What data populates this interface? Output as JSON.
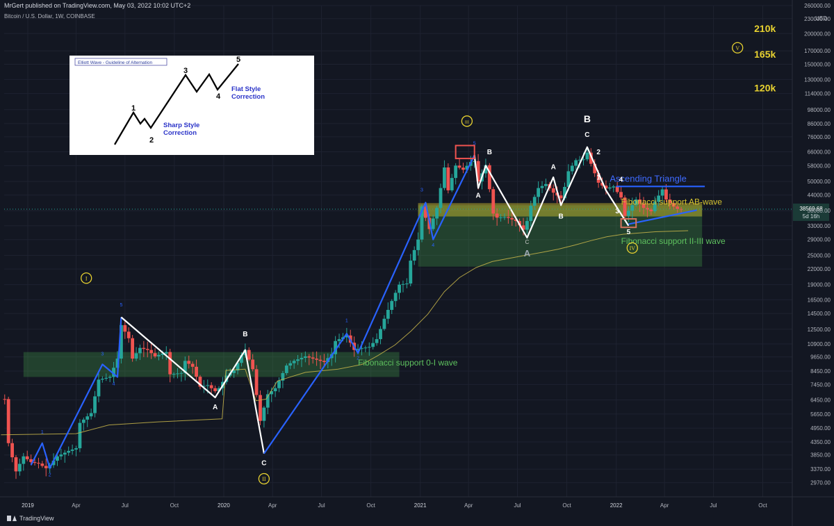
{
  "header": {
    "published": "MrGert published on TradingView.com, May 03, 2022 10:02 UTC+2",
    "symbol": "Bitcoin / U.S. Dollar, 1W, COINBASE"
  },
  "footer": {
    "brand": "TradingView"
  },
  "colors": {
    "background": "#131722",
    "up": "#26a69a",
    "down": "#ef5350",
    "wave_blue": "#2962ff",
    "wave_white": "#ffffff",
    "yellow": "#e8d230",
    "fib_green": "#4caf50"
  },
  "chart_data": {
    "type": "candlestick",
    "title": "Bitcoin / U.S. Dollar, 1W, COINBASE",
    "y_scale": "log",
    "y_unit": "USD",
    "ylim": [
      2600,
      260000
    ],
    "y_ticks": [
      "260000.00",
      "230000.00",
      "200000.00",
      "170000.00",
      "150000.00",
      "130000.00",
      "114000.00",
      "98000.00",
      "86000.00",
      "76000.00",
      "66000.00",
      "58000.00",
      "50000.00",
      "44000.00",
      "38000.00",
      "33000.00",
      "29000.00",
      "25000.00",
      "22000.00",
      "19000.00",
      "16500.00",
      "14500.00",
      "12500.00",
      "10900.00",
      "9650.00",
      "8450.00",
      "7450.00",
      "6450.00",
      "5650.00",
      "4950.00",
      "4350.00",
      "3850.00",
      "3370.00",
      "2970.00"
    ],
    "x_ticks": [
      "2019",
      "Apr",
      "Jul",
      "Oct",
      "2020",
      "Apr",
      "Jul",
      "Oct",
      "2021",
      "Apr",
      "Jul",
      "Oct",
      "2022",
      "Apr",
      "Jul",
      "Oct"
    ],
    "x_tick_dates": [
      "2019-01-01",
      "2019-04-01",
      "2019-07-01",
      "2019-10-01",
      "2020-01-01",
      "2020-04-01",
      "2020-07-01",
      "2020-10-01",
      "2021-01-01",
      "2021-04-01",
      "2021-07-01",
      "2021-10-01",
      "2022-01-01",
      "2022-04-01",
      "2022-07-01",
      "2022-10-01"
    ],
    "xlim": [
      "2018-11-18",
      "2022-11-25"
    ],
    "last_price": {
      "label": "38569.68",
      "sub": "5d 16h",
      "value": 38569.68
    },
    "price_anchors": [
      [
        "2018-11-19",
        6500
      ],
      [
        "2018-11-26",
        4300
      ],
      [
        "2018-12-10",
        3300
      ],
      [
        "2018-12-24",
        3800
      ],
      [
        "2019-01-07",
        3600
      ],
      [
        "2019-01-21",
        3550
      ],
      [
        "2019-02-04",
        3400
      ],
      [
        "2019-02-11",
        3500
      ],
      [
        "2019-02-25",
        3800
      ],
      [
        "2019-03-18",
        4000
      ],
      [
        "2019-04-01",
        4100
      ],
      [
        "2019-04-08",
        5200
      ],
      [
        "2019-04-29",
        5700
      ],
      [
        "2019-05-13",
        7800
      ],
      [
        "2019-06-03",
        8000
      ],
      [
        "2019-06-17",
        9500
      ],
      [
        "2019-06-24",
        13000
      ],
      [
        "2019-07-08",
        11500
      ],
      [
        "2019-07-15",
        9500
      ],
      [
        "2019-07-29",
        10500
      ],
      [
        "2019-08-12",
        10300
      ],
      [
        "2019-08-26",
        9700
      ],
      [
        "2019-09-16",
        10100
      ],
      [
        "2019-09-23",
        8200
      ],
      [
        "2019-10-14",
        8300
      ],
      [
        "2019-10-21",
        9300
      ],
      [
        "2019-11-04",
        8800
      ],
      [
        "2019-11-18",
        7300
      ],
      [
        "2019-12-02",
        7400
      ],
      [
        "2019-12-16",
        7000
      ],
      [
        "2019-12-23",
        7200
      ],
      [
        "2020-01-06",
        8100
      ],
      [
        "2020-01-20",
        8500
      ],
      [
        "2020-02-03",
        9800
      ],
      [
        "2020-02-10",
        10300
      ],
      [
        "2020-02-24",
        8600
      ],
      [
        "2020-03-09",
        5300
      ],
      [
        "2020-03-16",
        6000
      ],
      [
        "2020-03-23",
        6800
      ],
      [
        "2020-04-06",
        7200
      ],
      [
        "2020-04-27",
        8900
      ],
      [
        "2020-05-11",
        9300
      ],
      [
        "2020-06-01",
        9700
      ],
      [
        "2020-07-06",
        9200
      ],
      [
        "2020-07-20",
        9900
      ],
      [
        "2020-07-27",
        11200
      ],
      [
        "2020-08-17",
        11800
      ],
      [
        "2020-08-31",
        10300
      ],
      [
        "2020-09-07",
        10400
      ],
      [
        "2020-09-28",
        10600
      ],
      [
        "2020-10-12",
        11400
      ],
      [
        "2020-10-26",
        13800
      ],
      [
        "2020-11-09",
        16300
      ],
      [
        "2020-11-23",
        19000
      ],
      [
        "2020-12-07",
        19200
      ],
      [
        "2020-12-14",
        23800
      ],
      [
        "2020-12-28",
        29000
      ],
      [
        "2021-01-04",
        39500
      ],
      [
        "2021-01-18",
        32000
      ],
      [
        "2021-02-01",
        39000
      ],
      [
        "2021-02-08",
        47000
      ],
      [
        "2021-02-15",
        57000
      ],
      [
        "2021-02-22",
        46000
      ],
      [
        "2021-03-08",
        58000
      ],
      [
        "2021-03-22",
        55800
      ],
      [
        "2021-04-05",
        60000
      ],
      [
        "2021-04-12",
        60500
      ],
      [
        "2021-04-19",
        50000
      ],
      [
        "2021-05-03",
        58200
      ],
      [
        "2021-05-10",
        46500
      ],
      [
        "2021-05-17",
        37000
      ],
      [
        "2021-05-24",
        35600
      ],
      [
        "2021-06-07",
        35800
      ],
      [
        "2021-06-14",
        35500
      ],
      [
        "2021-06-28",
        34500
      ],
      [
        "2021-07-12",
        31800
      ],
      [
        "2021-07-19",
        34500
      ],
      [
        "2021-07-26",
        39800
      ],
      [
        "2021-08-09",
        47000
      ],
      [
        "2021-08-23",
        48800
      ],
      [
        "2021-09-06",
        45000
      ],
      [
        "2021-09-20",
        42700
      ],
      [
        "2021-09-27",
        47500
      ],
      [
        "2021-10-04",
        55000
      ],
      [
        "2021-10-18",
        61000
      ],
      [
        "2021-11-01",
        61500
      ],
      [
        "2021-11-08",
        65500
      ],
      [
        "2021-11-15",
        59000
      ],
      [
        "2021-11-29",
        49400
      ],
      [
        "2021-12-13",
        46800
      ],
      [
        "2021-12-27",
        47700
      ],
      [
        "2022-01-10",
        43000
      ],
      [
        "2022-01-17",
        36200
      ],
      [
        "2022-01-24",
        38000
      ],
      [
        "2022-02-07",
        42200
      ],
      [
        "2022-02-21",
        39000
      ],
      [
        "2022-03-07",
        37800
      ],
      [
        "2022-03-14",
        41300
      ],
      [
        "2022-03-28",
        46400
      ],
      [
        "2022-04-04",
        42200
      ],
      [
        "2022-04-18",
        39500
      ],
      [
        "2022-04-25",
        38600
      ],
      [
        "2022-05-02",
        38569
      ]
    ],
    "ma_anchors": [
      [
        "2018-11-12",
        4650
      ],
      [
        "2019-04-01",
        4700
      ],
      [
        "2019-06-01",
        5100
      ],
      [
        "2019-09-01",
        5250
      ],
      [
        "2019-12-29",
        5400
      ],
      [
        "2020-01-05",
        8500
      ],
      [
        "2020-01-20",
        8550
      ],
      [
        "2020-02-10",
        8600
      ],
      [
        "2020-03-01",
        6400
      ],
      [
        "2020-03-20",
        6500
      ],
      [
        "2020-04-10",
        7700
      ],
      [
        "2020-06-01",
        8350
      ],
      [
        "2020-08-01",
        8600
      ],
      [
        "2020-09-15",
        9000
      ],
      [
        "2020-10-15",
        9800
      ],
      [
        "2020-11-15",
        10800
      ],
      [
        "2020-12-15",
        12300
      ],
      [
        "2021-01-15",
        14400
      ],
      [
        "2021-02-15",
        17800
      ],
      [
        "2021-03-15",
        20300
      ],
      [
        "2021-04-15",
        22300
      ],
      [
        "2021-05-15",
        23600
      ],
      [
        "2021-06-15",
        24300
      ],
      [
        "2021-07-15",
        25000
      ],
      [
        "2021-08-15",
        25700
      ],
      [
        "2021-09-15",
        26500
      ],
      [
        "2021-10-15",
        27500
      ],
      [
        "2021-11-15",
        28700
      ],
      [
        "2021-12-15",
        29800
      ],
      [
        "2022-01-15",
        30500
      ],
      [
        "2022-03-15",
        31200
      ],
      [
        "2022-05-15",
        31500
      ]
    ],
    "waves": [
      {
        "name": "blue-impulse-1",
        "color": "#2962ff",
        "points": [
          [
            "2019-01-07",
            3500
          ],
          [
            "2019-01-28",
            4300
          ],
          [
            "2019-02-11",
            3400
          ],
          [
            "2019-05-20",
            9000
          ],
          [
            "2019-06-17",
            8000
          ],
          [
            "2019-06-24",
            14000
          ]
        ]
      },
      {
        "name": "white-abc-1",
        "color": "#ffffff",
        "points": [
          [
            "2019-06-24",
            14000
          ],
          [
            "2019-12-16",
            6600
          ],
          [
            "2020-02-10",
            10300
          ],
          [
            "2020-03-16",
            3900
          ]
        ]
      },
      {
        "name": "blue-impulse-2",
        "color": "#2962ff",
        "points": [
          [
            "2020-03-16",
            3900
          ],
          [
            "2020-08-17",
            12000
          ],
          [
            "2020-09-07",
            10000
          ],
          [
            "2021-01-11",
            41000
          ],
          [
            "2021-01-25",
            29000
          ],
          [
            "2021-04-12",
            64000
          ]
        ]
      },
      {
        "name": "white-abc-2",
        "color": "#ffffff",
        "points": [
          [
            "2021-04-12",
            64000
          ],
          [
            "2021-04-19",
            47000
          ],
          [
            "2021-05-03",
            58000
          ],
          [
            "2021-07-19",
            29500
          ],
          [
            "2021-09-06",
            52000
          ],
          [
            "2021-09-20",
            40000
          ],
          [
            "2021-11-08",
            69000
          ],
          [
            "2021-12-13",
            46000
          ],
          [
            "2022-01-24",
            33000
          ]
        ]
      },
      {
        "name": "blue-triangle-top",
        "color": "#2962ff",
        "points": [
          [
            "2022-01-01",
            47700
          ],
          [
            "2022-06-15",
            47700
          ]
        ]
      },
      {
        "name": "blue-triangle-bottom",
        "color": "#2962ff",
        "points": [
          [
            "2022-01-24",
            33500
          ],
          [
            "2022-05-31",
            38200
          ]
        ]
      }
    ],
    "zones": [
      {
        "name": "fib-zone-0-1",
        "color": "#4caf50",
        "opacity": 0.28,
        "x1": "2018-12-24",
        "x2": "2020-11-23",
        "y1": 8000,
        "y2": 10100
      },
      {
        "name": "fib-zone-2-3",
        "color": "#4caf50",
        "opacity": 0.28,
        "x1": "2020-12-28",
        "x2": "2022-06-10",
        "y1": 22500,
        "y2": 40000
      },
      {
        "name": "fib-zone-ab",
        "color": "#e8d230",
        "opacity": 0.42,
        "x1": "2020-12-28",
        "x2": "2022-06-10",
        "y1": 36000,
        "y2": 40800
      }
    ],
    "markers": [
      {
        "name": "red-box-wave-3-top",
        "color": "#ef5350",
        "x1": "2021-03-08",
        "x2": "2021-04-12",
        "y1": 62000,
        "y2": 70000
      },
      {
        "name": "box-wave-4-low",
        "color": "#d8735e",
        "x1": "2022-01-10",
        "x2": "2022-02-07",
        "y1": 32500,
        "y2": 35200
      }
    ],
    "annotations": {
      "fib_labels": [
        {
          "text": "Fibonacci support 0-I wave",
          "color": "#5ec25e",
          "x": "2020-09-07",
          "y": 8900
        },
        {
          "text": "Fibonacci support II-III wave",
          "color": "#5ec25e",
          "x": "2022-01-10",
          "y": 27800
        },
        {
          "text": "Fibonacci support AB-wave",
          "color": "#d6c430",
          "x": "2022-01-10",
          "y": 40200
        }
      ],
      "triangle_label": {
        "text": "Ascending Triangle",
        "color": "#3f6bff",
        "x": "2021-12-20",
        "y": 49800
      },
      "targets": [
        {
          "text": "210k",
          "x": "2022-09-15",
          "y": 210000
        },
        {
          "text": "165k",
          "x": "2022-09-15",
          "y": 165000
        },
        {
          "text": "120k",
          "x": "2022-09-15",
          "y": 120000
        }
      ],
      "circled": [
        {
          "text": "I",
          "x": "2019-04-20",
          "y": 20200
        },
        {
          "text": "II",
          "x": "2020-03-16",
          "y": 3080
        },
        {
          "text": "III",
          "x": "2021-03-29",
          "y": 88000
        },
        {
          "text": "IV",
          "x": "2022-01-31",
          "y": 26800
        },
        {
          "text": "V",
          "x": "2022-08-15",
          "y": 175000
        }
      ],
      "wave_labels": [
        {
          "text": "A",
          "color": "#ffffff",
          "size": 10,
          "x": "2019-12-16",
          "y": 5900
        },
        {
          "text": "B",
          "color": "#ffffff",
          "size": 10,
          "x": "2020-02-10",
          "y": 11700
        },
        {
          "text": "C",
          "color": "#ffffff",
          "size": 10,
          "x": "2020-03-16",
          "y": 3500
        },
        {
          "text": "A",
          "color": "#ffffff",
          "size": 10,
          "x": "2021-04-19",
          "y": 43000
        },
        {
          "text": "B",
          "color": "#ffffff",
          "size": 10,
          "x": "2021-05-10",
          "y": 64500
        },
        {
          "text": "C",
          "color": "#cccccc",
          "size": 8,
          "x": "2021-07-19",
          "y": 27800
        },
        {
          "text": "A",
          "color": "#9aa6b0",
          "size": 13,
          "x": "2021-07-19",
          "y": 24800
        },
        {
          "text": "A",
          "color": "#ffffff",
          "size": 10,
          "x": "2021-09-06",
          "y": 56000
        },
        {
          "text": "B",
          "color": "#ffffff",
          "size": 10,
          "x": "2021-09-20",
          "y": 35300
        },
        {
          "text": "C",
          "color": "#ffffff",
          "size": 10,
          "x": "2021-11-08",
          "y": 76000
        },
        {
          "text": "B",
          "color": "#ffffff",
          "size": 14,
          "x": "2021-11-08",
          "y": 87000
        },
        {
          "text": "2",
          "color": "#ffffff",
          "size": 10,
          "x": "2021-11-29",
          "y": 64500
        },
        {
          "text": "1",
          "color": "#ffffff",
          "size": 10,
          "x": "2021-11-29",
          "y": 50800
        },
        {
          "text": "3",
          "color": "#ffffff",
          "size": 10,
          "x": "2022-01-03",
          "y": 37100
        },
        {
          "text": "4",
          "color": "#ffffff",
          "size": 10,
          "x": "2022-01-10",
          "y": 49800
        },
        {
          "text": "5",
          "color": "#ffffff",
          "size": 10,
          "x": "2022-01-24",
          "y": 30500
        },
        {
          "text": "1",
          "color": "#2962ff",
          "size": 7,
          "x": "2019-01-28",
          "y": 4700
        },
        {
          "text": "2",
          "color": "#2962ff",
          "size": 7,
          "x": "2019-02-11",
          "y": 3150
        },
        {
          "text": "3",
          "color": "#2962ff",
          "size": 7,
          "x": "2019-05-20",
          "y": 9800
        },
        {
          "text": "4",
          "color": "#2962ff",
          "size": 7,
          "x": "2019-06-10",
          "y": 7400
        },
        {
          "text": "5",
          "color": "#2962ff",
          "size": 7,
          "x": "2019-06-24",
          "y": 15500
        },
        {
          "text": "1",
          "color": "#2962ff",
          "size": 7,
          "x": "2020-08-17",
          "y": 13400
        },
        {
          "text": "2",
          "color": "#2962ff",
          "size": 7,
          "x": "2020-09-07",
          "y": 9400
        },
        {
          "text": "3",
          "color": "#2962ff",
          "size": 7,
          "x": "2021-01-04",
          "y": 45500
        },
        {
          "text": "4",
          "color": "#2962ff",
          "size": 7,
          "x": "2021-01-25",
          "y": 27100
        },
        {
          "text": "5",
          "color": "#2962ff",
          "size": 7,
          "x": "2021-04-12",
          "y": 70500
        }
      ]
    }
  },
  "inset": {
    "title": "Elliott Wave - Guideline of Alternation",
    "wave_path": [
      [
        0,
        0
      ],
      [
        27,
        -46
      ],
      [
        37,
        -30
      ],
      [
        43,
        -37
      ],
      [
        52,
        -24
      ],
      [
        102,
        -100
      ],
      [
        118,
        -76
      ],
      [
        136,
        -101
      ],
      [
        148,
        -79
      ],
      [
        178,
        -116
      ]
    ],
    "sharp_label": "Sharp Style",
    "sharp_label_2": "Correction",
    "flat_label": "Flat Style",
    "flat_label_2": "Correction",
    "labels": [
      {
        "text": "1",
        "dx": 27,
        "dy": -49
      },
      {
        "text": "2",
        "dx": 53,
        "dy": -3
      },
      {
        "text": "3",
        "dx": 102,
        "dy": -103
      },
      {
        "text": "4",
        "dx": 149,
        "dy": -66
      },
      {
        "text": "5",
        "dx": 178,
        "dy": -119
      }
    ]
  }
}
